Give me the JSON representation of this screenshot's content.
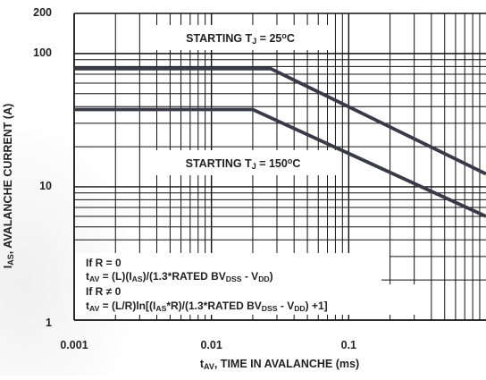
{
  "chart_data": {
    "type": "line",
    "title": "",
    "xlabel": {
      "base": "t",
      "sub": "AV",
      "rest": ", TIME IN AVALANCHE (ms)"
    },
    "ylabel": {
      "base": "I",
      "sub": "AS",
      "rest": ", AVALANCHE CURRENT (A)"
    },
    "x_scale": "log",
    "y_scale": "log",
    "xlim": [
      0.001,
      1
    ],
    "ylim": [
      1,
      200
    ],
    "x_tick_labels": [
      {
        "value": 0.001,
        "label": "0.001"
      },
      {
        "value": 0.01,
        "label": "0.01"
      },
      {
        "value": 0.1,
        "label": "0.1"
      }
    ],
    "y_tick_labels": [
      {
        "value": 1,
        "label": "1"
      },
      {
        "value": 10,
        "label": "10"
      },
      {
        "value": 100,
        "label": "100"
      },
      {
        "value": 200,
        "label": "200"
      }
    ],
    "grid": true,
    "series": [
      {
        "points": [
          [
            0.001,
            77
          ],
          [
            0.027,
            77
          ],
          [
            1,
            12.5
          ]
        ]
      },
      {
        "points": [
          [
            0.001,
            38
          ],
          [
            0.02,
            38
          ],
          [
            1,
            6.0
          ]
        ]
      }
    ],
    "annotations": [
      {
        "id": "ann-25",
        "parts": [
          {
            "t": "STARTING T"
          },
          {
            "t": "J",
            "s": "sub"
          },
          {
            "t": " = 25"
          },
          {
            "t": "o",
            "s": "sup"
          },
          {
            "t": "C"
          }
        ]
      },
      {
        "id": "ann-150",
        "parts": [
          {
            "t": "STARTING T"
          },
          {
            "t": "J",
            "s": "sub"
          },
          {
            "t": " = 150"
          },
          {
            "t": "o",
            "s": "sup"
          },
          {
            "t": "C"
          }
        ]
      }
    ],
    "formula_lines": [
      [
        {
          "t": "If R = 0"
        }
      ],
      [
        {
          "t": "t"
        },
        {
          "t": "AV",
          "s": "sub"
        },
        {
          "t": " = (L)(I"
        },
        {
          "t": "AS",
          "s": "sub"
        },
        {
          "t": ")/(1.3*RATED BV"
        },
        {
          "t": "DSS",
          "s": "sub"
        },
        {
          "t": " - V"
        },
        {
          "t": "DD",
          "s": "sub"
        },
        {
          "t": ")"
        }
      ],
      [
        {
          "t": "If R ≠ 0"
        }
      ],
      [
        {
          "t": "t"
        },
        {
          "t": "AV",
          "s": "sub"
        },
        {
          "t": " = (L/R)ln[(I"
        },
        {
          "t": "AS",
          "s": "sub"
        },
        {
          "t": "*R)/(1.3*RATED BV"
        },
        {
          "t": "DSS",
          "s": "sub"
        },
        {
          "t": " - V"
        },
        {
          "t": "DD",
          "s": "sub"
        },
        {
          "t": ") +1]"
        }
      ]
    ],
    "colors": {
      "grid": "#111111",
      "curve": "#3a3a46",
      "text": "#222222"
    }
  }
}
